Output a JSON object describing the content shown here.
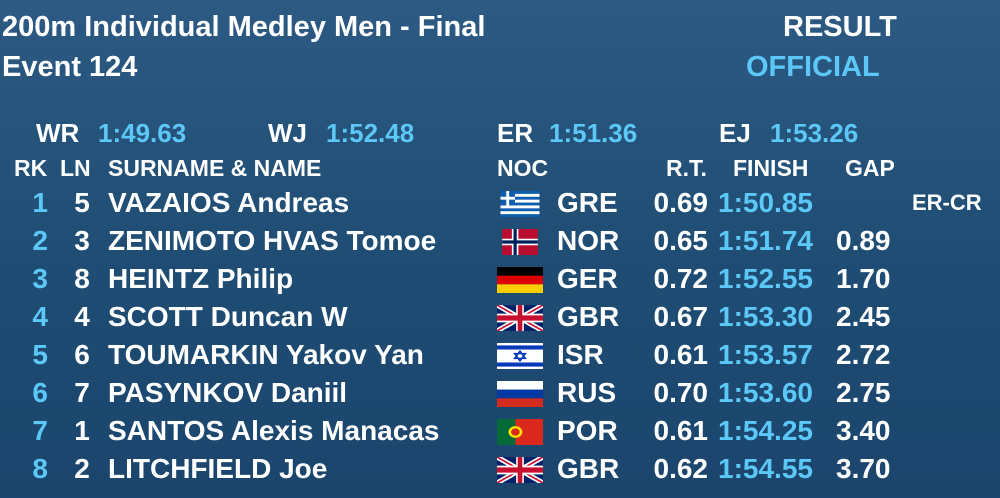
{
  "header": {
    "title": "200m Individual Medley Men - Final",
    "event": "Event 124",
    "status": "RESULT",
    "official": "OFFICIAL"
  },
  "records": [
    {
      "label": "WR",
      "time": "1:49.63"
    },
    {
      "label": "WJ",
      "time": "1:52.48"
    },
    {
      "label": "ER",
      "time": "1:51.36"
    },
    {
      "label": "EJ",
      "time": "1:53.26"
    }
  ],
  "columns": [
    "RK",
    "LN",
    "SURNAME & NAME",
    "NOC",
    "R.T.",
    "FINISH",
    "GAP"
  ],
  "rows": [
    {
      "rank": "1",
      "lane": "5",
      "name": "VAZAIOS Andreas",
      "noc": "GRE",
      "rt": "0.69",
      "finish": "1:50.85",
      "record": "ER-CR"
    },
    {
      "rank": "2",
      "lane": "3",
      "name": "ZENIMOTO HVAS Tomoe",
      "noc": "NOR",
      "rt": "0.65",
      "finish": "1:51.74",
      "gap": "0.89"
    },
    {
      "rank": "3",
      "lane": "8",
      "name": "HEINTZ Philip",
      "noc": "GER",
      "rt": "0.72",
      "finish": "1:52.55",
      "gap": "1.70"
    },
    {
      "rank": "4",
      "lane": "4",
      "name": "SCOTT Duncan W",
      "noc": "GBR",
      "rt": "0.67",
      "finish": "1:53.30",
      "gap": "2.45"
    },
    {
      "rank": "5",
      "lane": "6",
      "name": "TOUMARKIN Yakov Yan",
      "noc": "ISR",
      "rt": "0.61",
      "finish": "1:53.57",
      "gap": "2.72"
    },
    {
      "rank": "6",
      "lane": "7",
      "name": "PASYNKOV Daniil",
      "noc": "RUS",
      "rt": "0.70",
      "finish": "1:53.60",
      "gap": "2.75"
    },
    {
      "rank": "7",
      "lane": "1",
      "name": "SANTOS Alexis Manacas",
      "noc": "POR",
      "rt": "0.61",
      "finish": "1:54.25",
      "gap": "3.40"
    },
    {
      "rank": "8",
      "lane": "2",
      "name": "LITCHFIELD Joe",
      "noc": "GBR",
      "rt": "0.62",
      "finish": "1:54.55",
      "gap": "3.70"
    }
  ]
}
